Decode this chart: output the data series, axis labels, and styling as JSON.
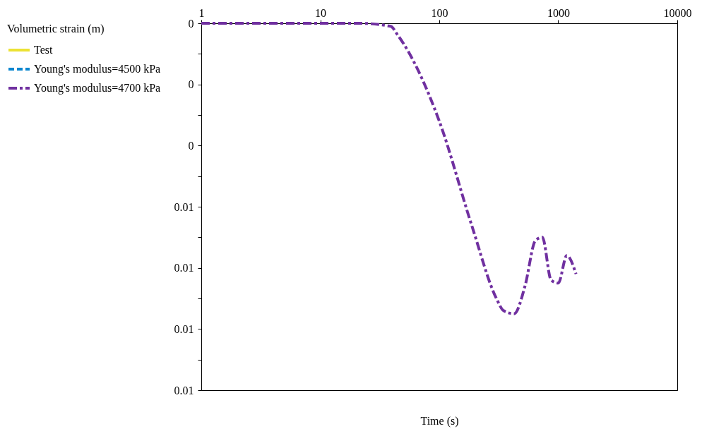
{
  "chart_data": {
    "type": "line",
    "xlabel": "Time (s)",
    "legend_title": "Volumetric strain (m)",
    "log": "x",
    "legend": "left",
    "grid": false,
    "marker": "none",
    "xlim": [
      1,
      10000
    ],
    "xticks": [
      1,
      10,
      100,
      1000,
      10000
    ],
    "ylim": [
      0.012,
      0
    ],
    "yticks": [
      {
        "value": 0,
        "label": "0"
      },
      {
        "value": 0.001,
        "label": null
      },
      {
        "value": 0.002,
        "label": "0"
      },
      {
        "value": 0.003,
        "label": null
      },
      {
        "value": 0.004,
        "label": "0"
      },
      {
        "value": 0.005,
        "label": null
      },
      {
        "value": 0.006,
        "label": "0.01"
      },
      {
        "value": 0.007,
        "label": null
      },
      {
        "value": 0.008,
        "label": "0.01"
      },
      {
        "value": 0.009,
        "label": null
      },
      {
        "value": 0.01,
        "label": "0.01"
      },
      {
        "value": 0.011,
        "label": null
      },
      {
        "value": 0.012,
        "label": "0.01"
      }
    ],
    "x": [
      1,
      10,
      21,
      39,
      45,
      100,
      187,
      302,
      347,
      426,
      525,
      644,
      735,
      870,
      1000,
      1180,
      1410
    ],
    "series": [
      {
        "name": "Test",
        "color": "#ece234",
        "line_style": "solid",
        "values": [
          null,
          null,
          null,
          null,
          null,
          null,
          null,
          null,
          null,
          null,
          null,
          null,
          null,
          null,
          null,
          null,
          null
        ]
      },
      {
        "name": "Young's modulus=4500 kPa",
        "color": "#0a86cf",
        "line_style": "dashed",
        "values": [
          null,
          null,
          null,
          null,
          null,
          null,
          null,
          null,
          null,
          null,
          null,
          null,
          null,
          null,
          null,
          null,
          null
        ]
      },
      {
        "name": "Young's modulus=4700 kPa",
        "color": "#7030a0",
        "line_style": "dashdot",
        "values": [
          0,
          0,
          0,
          0.0001,
          0.0004,
          0.0032,
          0.0066,
          0.009,
          0.0094,
          0.0095,
          0.0086,
          0.0071,
          0.007,
          0.0084,
          0.0085,
          0.0076,
          0.0082
        ]
      }
    ]
  }
}
